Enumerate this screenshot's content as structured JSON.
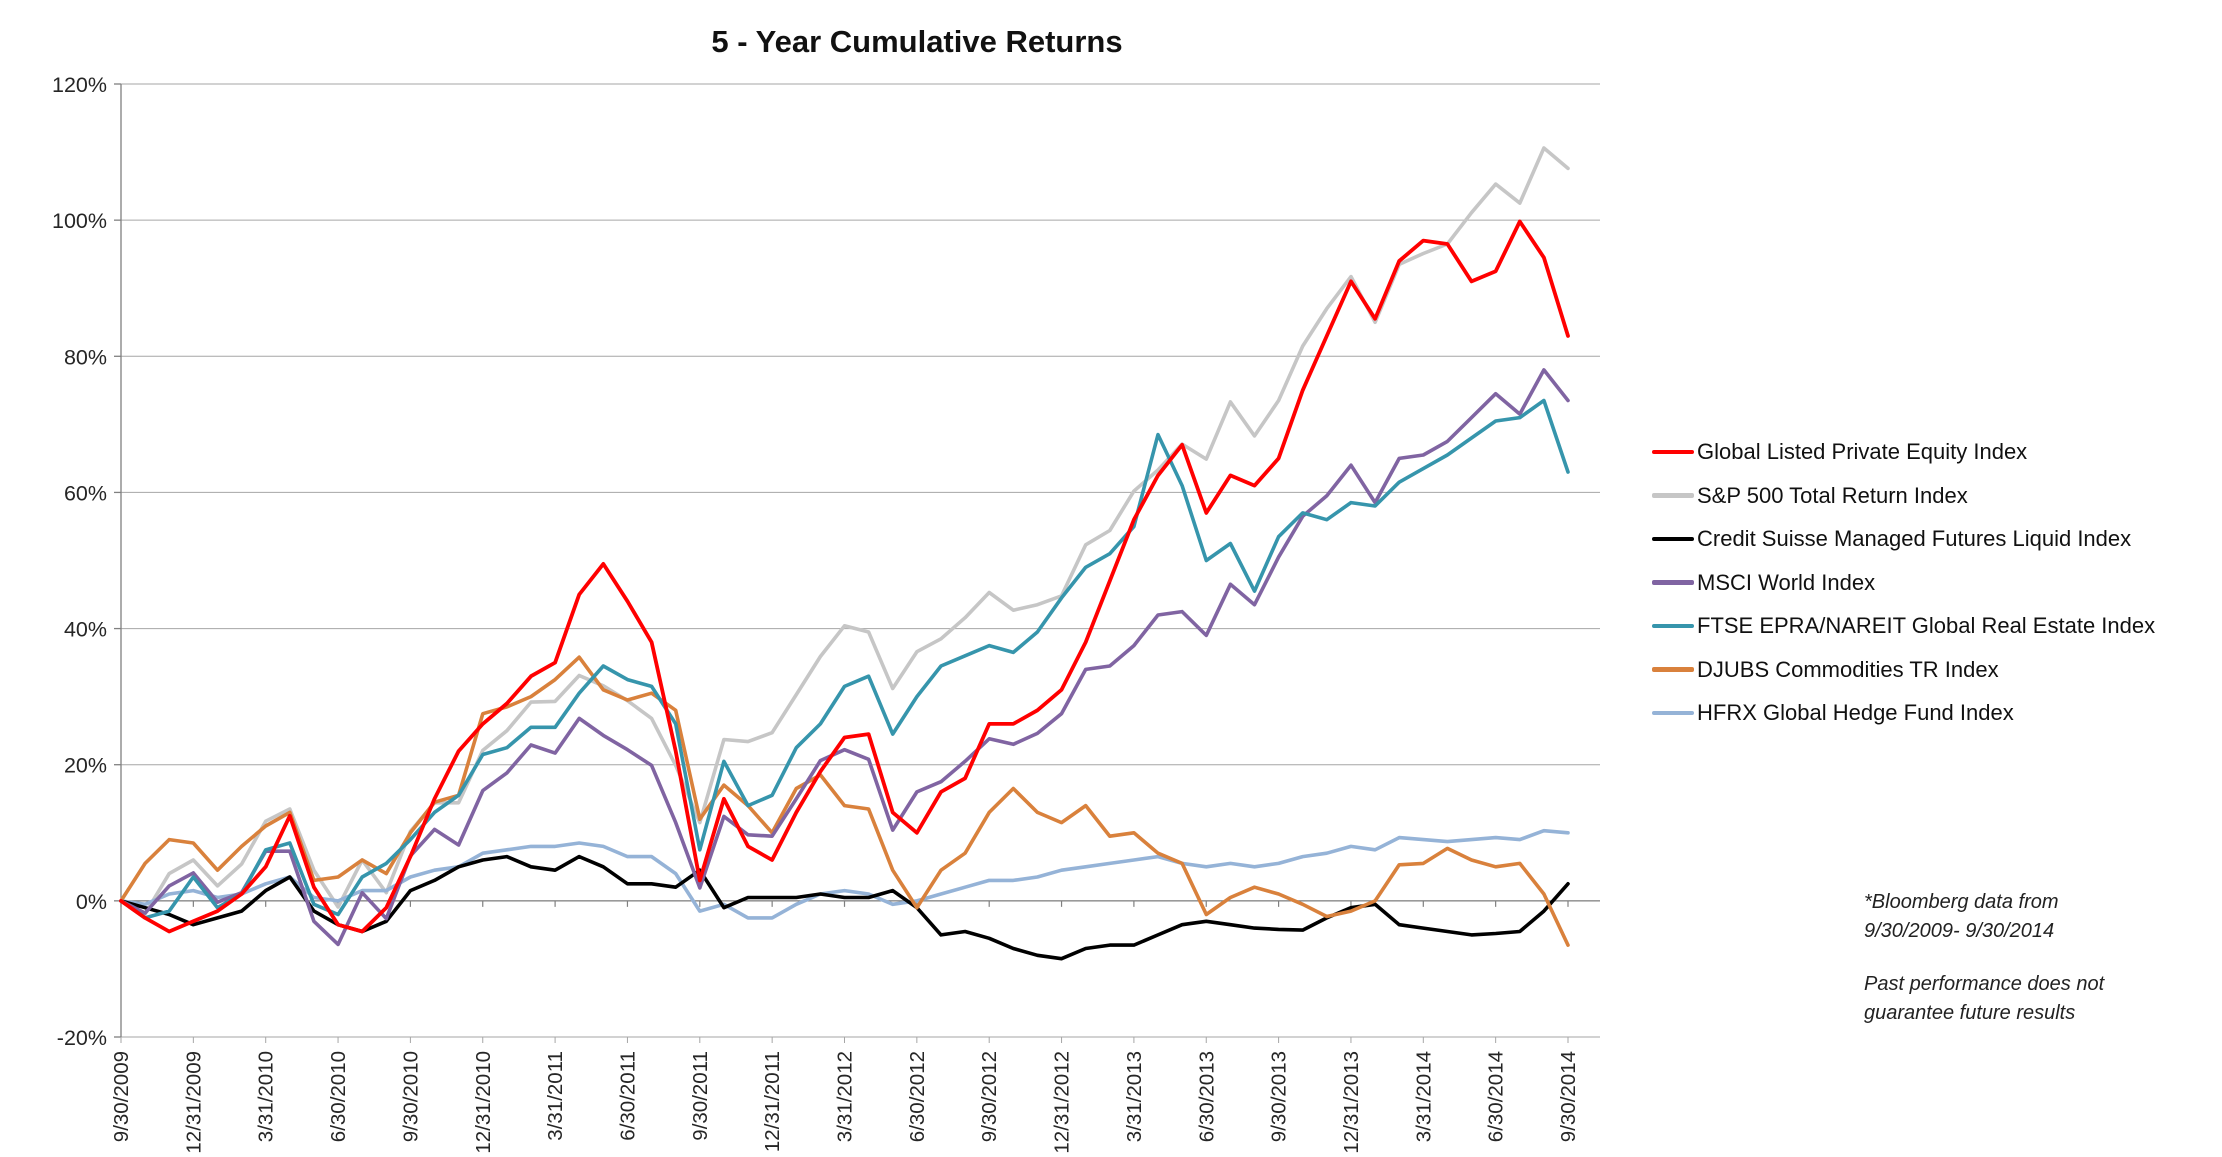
{
  "title": "5 - Year Cumulative Returns",
  "notes": {
    "l1": "*Bloomberg data from",
    "l2": "9/30/2009- 9/30/2014",
    "l3": "Past performance does not",
    "l4": "guarantee future results"
  },
  "chart_data": {
    "type": "line",
    "title": "5 - Year Cumulative Returns",
    "x_description": "61 monthly observations from 9/30/2009 to 9/30/2014",
    "x_points": 61,
    "x_tick_every_months": 3,
    "x_tick_labels": [
      "9/30/2009",
      "12/31/2009",
      "3/31/2010",
      "6/30/2010",
      "9/30/2010",
      "12/31/2010",
      "3/31/2011",
      "6/30/2011",
      "9/30/2011",
      "12/31/2011",
      "3/31/2012",
      "6/30/2012",
      "9/30/2012",
      "12/31/2012",
      "3/31/2013",
      "6/30/2013",
      "9/30/2013",
      "12/31/2013",
      "3/31/2014",
      "6/30/2014",
      "9/30/2014"
    ],
    "ylim": [
      -20,
      120
    ],
    "y_tick_step": 20,
    "y_tick_labels": [
      "-20%",
      "0%",
      "20%",
      "40%",
      "60%",
      "80%",
      "100%",
      "120%"
    ],
    "grid": "horizontal",
    "legend_position": "right",
    "axis_color": "#808080",
    "grid_color": "#A6A6A6",
    "label_color": "#262626",
    "series": [
      {
        "name": "Global Listed Private Equity Index",
        "color": "#FF0000",
        "width": 3.8,
        "values": [
          0,
          -2.5,
          -4.5,
          -3,
          -1.5,
          1,
          5,
          12.5,
          2,
          -3.5,
          -4.5,
          -1,
          6.5,
          15,
          22,
          26,
          29,
          33,
          35,
          45,
          49.5,
          44,
          38,
          22,
          3,
          15,
          8,
          6,
          13,
          19,
          24,
          24.5,
          13,
          10,
          16,
          18,
          26,
          26,
          28,
          31,
          38,
          47,
          56,
          62.5,
          67,
          57,
          62.5,
          61,
          65,
          75,
          83,
          91,
          85.5,
          94,
          97,
          96.5,
          91,
          92.5,
          99.8,
          94.5,
          83
        ]
      },
      {
        "name": "S&P 500 Total Return Index",
        "color": "#C6C6C6",
        "width": 3.6,
        "values": [
          0,
          -1.9,
          4,
          6,
          2.2,
          5.4,
          11.7,
          13.5,
          4.5,
          -0.9,
          6,
          1.2,
          10.2,
          14.4,
          14.4,
          22.1,
          25,
          29.2,
          29.3,
          33.1,
          31.6,
          29.4,
          26.8,
          19.9,
          11.5,
          23.7,
          23.4,
          24.7,
          30.3,
          35.9,
          40.4,
          39.5,
          31.2,
          36.6,
          38.5,
          41.6,
          45.3,
          42.7,
          43.5,
          44.8,
          52.3,
          54.4,
          60.2,
          63.3,
          67.1,
          64.9,
          73.3,
          68.3,
          73.5,
          81.5,
          87,
          91.7,
          85,
          93.5,
          95.1,
          96.5,
          101.1,
          105.3,
          102.5,
          110.6,
          107.6
        ]
      },
      {
        "name": "Credit Suisse Managed Futures Liquid Index",
        "color": "#000000",
        "width": 3.6,
        "values": [
          0,
          -1,
          -2,
          -3.5,
          -2.5,
          -1.5,
          1.5,
          3.5,
          -1.5,
          -3.5,
          -4.5,
          -3,
          1.5,
          3,
          5,
          6,
          6.5,
          5,
          4.5,
          6.5,
          5,
          2.5,
          2.5,
          2,
          4.5,
          -1,
          0.5,
          0.5,
          0.5,
          1,
          0.5,
          0.5,
          1.5,
          -1,
          -5,
          -4.5,
          -5.5,
          -7,
          -8,
          -8.5,
          -7,
          -6.5,
          -6.5,
          -5,
          -3.5,
          -3,
          -3.5,
          -4,
          -4.2,
          -4.3,
          -2.5,
          -1,
          -0.5,
          -3.5,
          -4,
          -4.5,
          -5,
          -4.8,
          -4.5,
          -1.5,
          2.5
        ]
      },
      {
        "name": "MSCI World Index",
        "color": "#8064A2",
        "width": 3.6,
        "values": [
          0,
          -1.8,
          2.2,
          4.1,
          -0.2,
          1.2,
          7.3,
          7.3,
          -3,
          -6.4,
          1.2,
          -2.6,
          6.6,
          10.5,
          8.2,
          16.2,
          18.8,
          22.9,
          21.7,
          26.8,
          24.3,
          22.2,
          19.9,
          11.5,
          1.9,
          12.4,
          9.7,
          9.5,
          15,
          20.6,
          22.2,
          20.8,
          10.4,
          16,
          17.5,
          20.5,
          23.8,
          23,
          24.6,
          27.5,
          34,
          34.5,
          37.5,
          42,
          42.5,
          39,
          46.5,
          43.5,
          50.5,
          56.5,
          59.5,
          64,
          58.5,
          65,
          65.5,
          67.5,
          71,
          74.5,
          71.5,
          78,
          73.5
        ]
      },
      {
        "name": "FTSE EPRA/NAREIT Global Real Estate Index",
        "color": "#3695AC",
        "width": 3.6,
        "values": [
          0,
          -2.5,
          -1.5,
          3.5,
          -1,
          1,
          7.5,
          8.5,
          -0.5,
          -2,
          3.5,
          5.5,
          9,
          13,
          15.5,
          21.5,
          22.5,
          25.5,
          25.5,
          30.5,
          34.5,
          32.5,
          31.5,
          26,
          7.5,
          20.5,
          14,
          15.5,
          22.5,
          26,
          31.5,
          33,
          24.5,
          30,
          34.5,
          36,
          37.5,
          36.5,
          39.5,
          44.5,
          49,
          51,
          55,
          68.5,
          61,
          50,
          52.5,
          45.5,
          53.5,
          57,
          56,
          58.5,
          58,
          61.5,
          63.5,
          65.5,
          68,
          70.5,
          71,
          73.5,
          63
        ]
      },
      {
        "name": "DJUBS Commodities TR Index",
        "color": "#D9813C",
        "width": 3.6,
        "values": [
          0,
          5.5,
          9,
          8.5,
          4.5,
          8,
          11,
          13,
          3,
          3.5,
          6,
          4,
          10,
          14.5,
          15.5,
          27.5,
          28.5,
          30,
          32.5,
          35.8,
          31,
          29.5,
          30.5,
          28,
          12,
          17,
          14,
          10,
          16.5,
          18.5,
          14,
          13.5,
          4.5,
          -1,
          4.5,
          7,
          13,
          16.5,
          13,
          11.5,
          14,
          9.5,
          10,
          7,
          5.5,
          -2,
          0.5,
          2,
          1,
          -0.5,
          -2.3,
          -1.5,
          0,
          5.3,
          5.5,
          7.7,
          6,
          5,
          5.5,
          1,
          -6.5
        ]
      },
      {
        "name": "HFRX Global Hedge Fund Index",
        "color": "#95B3D7",
        "width": 3.6,
        "values": [
          0,
          -0.5,
          1,
          1.5,
          0.5,
          1,
          2.5,
          3.5,
          0.5,
          0,
          1.5,
          1.5,
          3.5,
          4.5,
          5,
          7,
          7.5,
          8,
          8,
          8.5,
          8,
          6.5,
          6.5,
          4,
          -1.5,
          -0.5,
          -2.5,
          -2.5,
          -0.5,
          1,
          1.5,
          1,
          -0.5,
          0,
          1,
          2,
          3,
          3,
          3.5,
          4.5,
          5,
          5.5,
          6,
          6.5,
          5.5,
          5,
          5.5,
          5,
          5.5,
          6.5,
          7,
          8,
          7.5,
          9.3,
          9,
          8.7,
          9,
          9.3,
          9,
          10.3,
          10
        ]
      }
    ]
  }
}
